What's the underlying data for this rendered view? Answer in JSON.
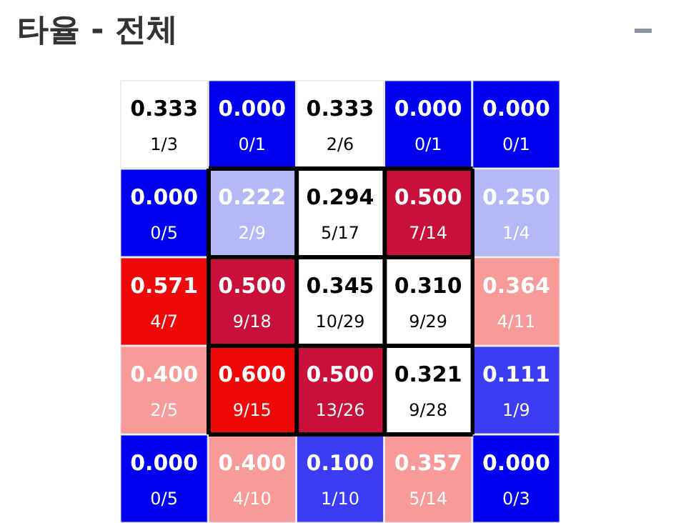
{
  "chart_data": {
    "type": "heatmap",
    "title": "타율 - 전체",
    "categories": [
      null,
      null,
      null,
      null,
      null
    ],
    "y_categories": [
      null,
      null,
      null,
      null,
      null
    ],
    "cell_labels": [
      [
        "0.333",
        "0.000",
        "0.333",
        "0.000",
        "0.000"
      ],
      [
        "0.000",
        "0.222",
        "0.294",
        "0.500",
        "0.250"
      ],
      [
        "0.571",
        "0.500",
        "0.345",
        "0.310",
        "0.364"
      ],
      [
        "0.400",
        "0.600",
        "0.500",
        "0.321",
        "0.111"
      ],
      [
        "0.000",
        "0.400",
        "0.100",
        "0.357",
        "0.000"
      ]
    ],
    "cells": [
      [
        0.333,
        0.0,
        0.333,
        0.0,
        0.0
      ],
      [
        0.0,
        0.222,
        0.294,
        0.5,
        0.25
      ],
      [
        0.571,
        0.5,
        0.345,
        0.31,
        0.364
      ],
      [
        0.4,
        0.6,
        0.5,
        0.321,
        0.111
      ],
      [
        0.0,
        0.4,
        0.1,
        0.357,
        0.0
      ]
    ],
    "annotations": [
      "1/3",
      "0/1",
      "2/6",
      "0/1",
      "0/1",
      "0/5",
      "2/9",
      "5/17",
      "7/14",
      "1/4",
      "4/7",
      "9/18",
      "10/29",
      "9/29",
      "4/11",
      "2/5",
      "9/15",
      "13/26",
      "9/28",
      "1/9",
      "0/5",
      "4/10",
      "1/10",
      "5/14",
      "0/3"
    ]
  }
}
